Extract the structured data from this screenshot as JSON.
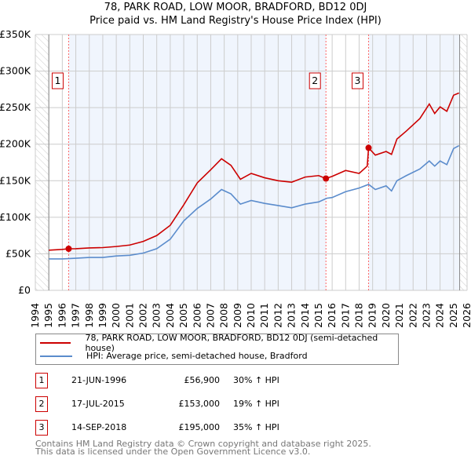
{
  "title": "78, PARK ROAD, LOW MOOR, BRADFORD, BD12 0DJ",
  "subtitle": "Price paid vs. HM Land Registry's House Price Index (HPI)",
  "chart_data": {
    "type": "line",
    "title": "78, PARK ROAD, LOW MOOR, BRADFORD, BD12 0DJ — Price paid vs. HM Land Registry's House Price Index (HPI)",
    "xlim": [
      1994,
      2026
    ],
    "ylim": [
      0,
      350000
    ],
    "x_ticks": [
      "1994",
      "1995",
      "1996",
      "1997",
      "1998",
      "1999",
      "2000",
      "2001",
      "2002",
      "2003",
      "2004",
      "2005",
      "2006",
      "2007",
      "2008",
      "2009",
      "2010",
      "2011",
      "2012",
      "2013",
      "2014",
      "2015",
      "2016",
      "2017",
      "2018",
      "2019",
      "2020",
      "2021",
      "2022",
      "2023",
      "2024",
      "2025",
      "2026"
    ],
    "y_ticks": [
      {
        "v": 0,
        "label": "£0"
      },
      {
        "v": 50000,
        "label": "£50K"
      },
      {
        "v": 100000,
        "label": "£100K"
      },
      {
        "v": 150000,
        "label": "£150K"
      },
      {
        "v": 200000,
        "label": "£200K"
      },
      {
        "v": 250000,
        "label": "£250K"
      },
      {
        "v": 300000,
        "label": "£300K"
      },
      {
        "v": 350000,
        "label": "£350K"
      }
    ],
    "grid": true,
    "series": [
      {
        "name": "78, PARK ROAD, LOW MOOR, BRADFORD, BD12 0DJ (semi-detached house)",
        "color": "#cc0000",
        "x": [
          1995,
          1996,
          1996.47,
          1997,
          1998,
          1999,
          2000,
          2001,
          2002,
          2003,
          2004,
          2005,
          2006,
          2007,
          2007.8,
          2008.5,
          2009.2,
          2010,
          2011,
          2012,
          2013,
          2014,
          2015,
          2015.54,
          2016,
          2017,
          2018,
          2018.6,
          2018.7,
          2019.2,
          2020,
          2020.4,
          2020.8,
          2021.5,
          2022.5,
          2023.2,
          2023.6,
          2024,
          2024.5,
          2025,
          2025.4
        ],
        "y": [
          55000,
          56000,
          56900,
          57000,
          58000,
          58500,
          60000,
          62000,
          67000,
          75000,
          89000,
          117000,
          147000,
          165000,
          180000,
          171000,
          152000,
          160000,
          154000,
          150000,
          148000,
          155000,
          157000,
          153000,
          156000,
          164000,
          160000,
          170000,
          195000,
          185000,
          190000,
          186000,
          207000,
          218000,
          235000,
          255000,
          242000,
          251000,
          245000,
          267000,
          270000
        ]
      },
      {
        "name": "HPI: Average price, semi-detached house, Bradford",
        "color": "#5b8ccc",
        "x": [
          1995,
          1996,
          1997,
          1998,
          1999,
          2000,
          2001,
          2002,
          2003,
          2004,
          2005,
          2006,
          2007,
          2007.8,
          2008.5,
          2009.2,
          2010,
          2011,
          2012,
          2013,
          2014,
          2015,
          2015.6,
          2016,
          2017,
          2018,
          2018.7,
          2019.2,
          2020,
          2020.4,
          2020.8,
          2021.5,
          2022.5,
          2023.2,
          2023.6,
          2024,
          2024.5,
          2025,
          2025.4
        ],
        "y": [
          43000,
          43000,
          44000,
          45000,
          45000,
          47000,
          48000,
          51000,
          57000,
          70000,
          95000,
          112000,
          125000,
          138000,
          132000,
          118000,
          123000,
          119000,
          116000,
          113000,
          118000,
          121000,
          126000,
          127000,
          135000,
          140000,
          145000,
          138000,
          143000,
          136000,
          150000,
          157000,
          166000,
          177000,
          170000,
          177000,
          172000,
          194000,
          198000
        ]
      }
    ],
    "sales": [
      {
        "n": "1",
        "x": 1996.47,
        "y": 56900
      },
      {
        "n": "2",
        "x": 2015.54,
        "y": 153000
      },
      {
        "n": "3",
        "x": 2018.7,
        "y": 195000
      }
    ],
    "data_end": 2025.45
  },
  "legend": {
    "property": "78, PARK ROAD, LOW MOOR, BRADFORD, BD12 0DJ (semi-detached house)",
    "hpi": "HPI: Average price, semi-detached house, Bradford"
  },
  "transactions": [
    {
      "n": "1",
      "date": "21-JUN-1996",
      "price": "£56,900",
      "hpi": "30% ↑ HPI"
    },
    {
      "n": "2",
      "date": "17-JUL-2015",
      "price": "£153,000",
      "hpi": "19% ↑ HPI"
    },
    {
      "n": "3",
      "date": "14-SEP-2018",
      "price": "£195,000",
      "hpi": "35% ↑ HPI"
    }
  ],
  "footer": {
    "line1": "Contains HM Land Registry data © Crown copyright and database right 2025.",
    "line2": "This data is licensed under the Open Government Licence v3.0."
  }
}
